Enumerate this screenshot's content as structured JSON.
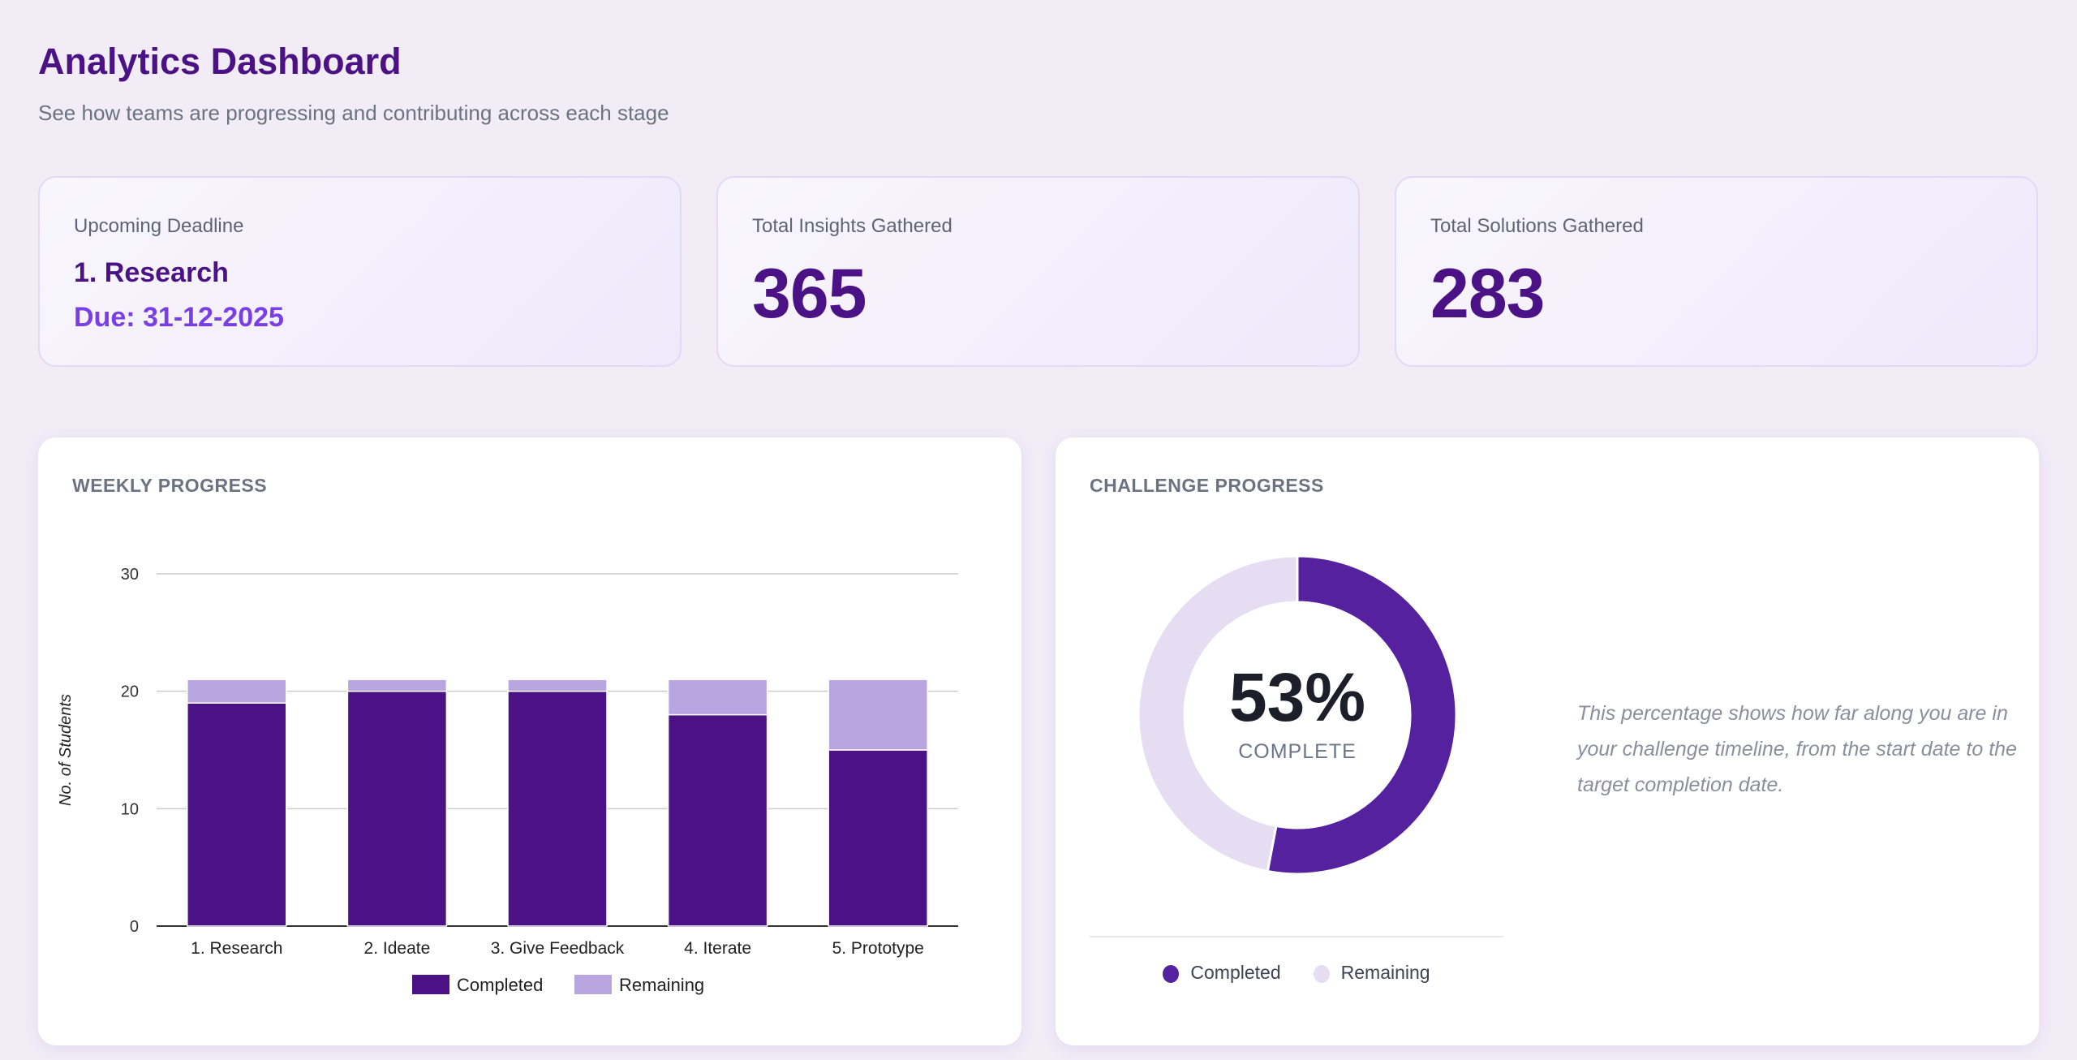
{
  "header": {
    "title": "Analytics Dashboard",
    "subtitle": "See how teams are progressing and contributing across each stage"
  },
  "stats": {
    "deadline": {
      "label": "Upcoming Deadline",
      "stage": "1. Research",
      "due": "Due: 31-12-2025"
    },
    "insights": {
      "label": "Total Insights Gathered",
      "value": "365"
    },
    "solutions": {
      "label": "Total Solutions Gathered",
      "value": "283"
    }
  },
  "weekly": {
    "title": "WEEKLY PROGRESS"
  },
  "challenge": {
    "title": "CHALLENGE PROGRESS",
    "percent_label": "53%",
    "complete_label": "COMPLETE",
    "description": "This percentage shows how far along you are in your challenge timeline, from the start date to the target completion date.",
    "legend": [
      "Completed",
      "Remaining"
    ]
  },
  "colors": {
    "completed": "#4a1285",
    "remaining": "#b9a6e0",
    "donut_completed": "#55219e",
    "donut_remaining": "#e6ddf3"
  },
  "chart_data": [
    {
      "type": "bar",
      "stacked": true,
      "categories": [
        "1. Research",
        "2. Ideate",
        "3. Give Feedback",
        "4. Iterate",
        "5. Prototype"
      ],
      "series": [
        {
          "name": "Completed",
          "values": [
            19,
            20,
            20,
            18,
            15
          ]
        },
        {
          "name": "Remaining",
          "values": [
            2,
            1,
            1,
            3,
            6
          ]
        }
      ],
      "ylabel": "No. of Students",
      "ylim": [
        0,
        30
      ],
      "yticks": [
        "0",
        "10",
        "20",
        "30"
      ],
      "grid": true,
      "legend": "bottom"
    },
    {
      "type": "pie",
      "donut": true,
      "labels": [
        "Completed",
        "Remaining"
      ],
      "values": [
        53,
        47
      ],
      "legend": "bottom"
    }
  ]
}
